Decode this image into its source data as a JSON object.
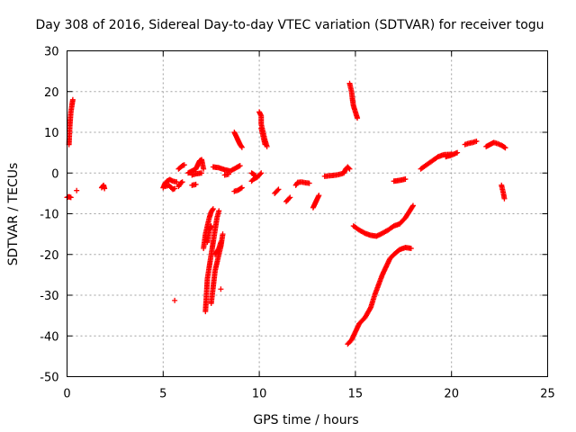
{
  "chart_data": {
    "type": "scatter",
    "title": "Day 308 of 2016, Sidereal Day-to-day VTEC variation (SDTVAR) for receiver togu",
    "xlabel": "GPS time / hours",
    "ylabel": "SDTVAR / TECUs",
    "xlim": [
      0,
      25
    ],
    "ylim": [
      -50,
      30
    ],
    "xticks": [
      "0",
      "5",
      "10",
      "15",
      "20",
      "25"
    ],
    "yticks": [
      "-50",
      "-40",
      "-30",
      "-20",
      "-10",
      "0",
      "10",
      "20",
      "30"
    ],
    "grid": true,
    "marker": "+",
    "color": "#ff0000",
    "tracks": [
      {
        "points": [
          [
            0.0,
            -6.0
          ],
          [
            0.1,
            -5.8
          ],
          [
            0.2,
            -6.0
          ]
        ]
      },
      {
        "points": [
          [
            0.1,
            7.0
          ],
          [
            0.15,
            12.0
          ],
          [
            0.2,
            15.0
          ],
          [
            0.3,
            18.0
          ]
        ]
      },
      {
        "points": [
          [
            0.5,
            -4.3
          ]
        ]
      },
      {
        "points": [
          [
            1.8,
            -3.6
          ],
          [
            1.9,
            -3.0
          ],
          [
            1.95,
            -3.8
          ]
        ]
      },
      {
        "points": [
          [
            5.0,
            -3.6
          ],
          [
            5.1,
            -2.5
          ],
          [
            5.2,
            -2.0
          ],
          [
            5.35,
            -1.6
          ],
          [
            5.5,
            -2.0
          ],
          [
            5.7,
            -2.2
          ]
        ]
      },
      {
        "points": [
          [
            5.1,
            -3.3
          ],
          [
            5.3,
            -3.0
          ],
          [
            5.5,
            -4.0
          ],
          [
            5.6,
            -3.8
          ]
        ]
      },
      {
        "points": [
          [
            5.8,
            -3.3
          ],
          [
            5.9,
            -2.5
          ],
          [
            6.0,
            -2.2
          ]
        ]
      },
      {
        "points": [
          [
            5.8,
            1.0
          ],
          [
            6.0,
            1.8
          ],
          [
            6.1,
            2.0
          ]
        ]
      },
      {
        "points": [
          [
            6.3,
            0.0
          ],
          [
            6.5,
            0.5
          ],
          [
            6.7,
            1.0
          ],
          [
            6.8,
            2.0
          ],
          [
            6.9,
            3.0
          ],
          [
            7.0,
            3.3
          ],
          [
            7.1,
            1.0
          ]
        ]
      },
      {
        "points": [
          [
            6.5,
            -0.5
          ],
          [
            6.7,
            -0.2
          ],
          [
            7.0,
            0.0
          ]
        ]
      },
      {
        "points": [
          [
            6.5,
            -3.0
          ],
          [
            6.7,
            -2.8
          ]
        ]
      },
      {
        "points": [
          [
            5.6,
            -31.3
          ]
        ]
      },
      {
        "points": [
          [
            7.1,
            -18.5
          ],
          [
            7.2,
            -15.0
          ],
          [
            7.3,
            -13.0
          ],
          [
            7.4,
            -11.0
          ],
          [
            7.5,
            -9.5
          ],
          [
            7.6,
            -8.8
          ]
        ]
      },
      {
        "points": [
          [
            7.2,
            -34.0
          ],
          [
            7.25,
            -30.0
          ],
          [
            7.3,
            -26.0
          ],
          [
            7.4,
            -23.0
          ],
          [
            7.5,
            -20.0
          ],
          [
            7.6,
            -17.0
          ],
          [
            7.7,
            -14.0
          ],
          [
            7.8,
            -11.0
          ],
          [
            7.9,
            -9.3
          ]
        ]
      },
      {
        "points": [
          [
            7.3,
            -17.0
          ],
          [
            7.4,
            -14.0
          ],
          [
            7.5,
            -13.0
          ]
        ]
      },
      {
        "points": [
          [
            7.5,
            -32.0
          ],
          [
            7.6,
            -28.0
          ],
          [
            7.7,
            -24.0
          ],
          [
            7.8,
            -22.0
          ],
          [
            7.9,
            -20.0
          ],
          [
            8.0,
            -18.0
          ],
          [
            8.1,
            -15.0
          ]
        ]
      },
      {
        "points": [
          [
            7.7,
            -20.0
          ],
          [
            7.9,
            -18.5
          ],
          [
            8.0,
            -17.0
          ]
        ]
      },
      {
        "points": [
          [
            8.0,
            -28.5
          ]
        ]
      },
      {
        "points": [
          [
            7.6,
            1.5
          ],
          [
            7.9,
            1.3
          ],
          [
            8.2,
            0.8
          ],
          [
            8.5,
            0.5
          ],
          [
            8.8,
            1.3
          ],
          [
            9.0,
            1.8
          ]
        ]
      },
      {
        "points": [
          [
            8.2,
            -0.5
          ],
          [
            8.4,
            -0.3
          ]
        ]
      },
      {
        "points": [
          [
            8.7,
            10.0
          ],
          [
            8.8,
            9.0
          ],
          [
            8.9,
            8.0
          ],
          [
            9.0,
            7.0
          ],
          [
            9.1,
            6.3
          ]
        ]
      },
      {
        "points": [
          [
            8.7,
            -4.5
          ],
          [
            8.9,
            -4.2
          ],
          [
            9.1,
            -3.6
          ]
        ]
      },
      {
        "points": [
          [
            9.6,
            -2.0
          ],
          [
            9.7,
            -1.5
          ],
          [
            9.9,
            -1.0
          ],
          [
            10.0,
            -0.5
          ],
          [
            10.1,
            0.0
          ]
        ]
      },
      {
        "points": [
          [
            9.6,
            0.0
          ],
          [
            9.8,
            -0.6
          ]
        ]
      },
      {
        "points": [
          [
            10.0,
            15.0
          ],
          [
            10.1,
            14.0
          ],
          [
            10.1,
            12.0
          ],
          [
            10.2,
            10.0
          ],
          [
            10.3,
            8.0
          ],
          [
            10.4,
            6.5
          ]
        ]
      },
      {
        "points": [
          [
            10.1,
            11.0
          ],
          [
            10.2,
            9.0
          ],
          [
            10.3,
            7.0
          ]
        ]
      },
      {
        "points": [
          [
            10.8,
            -5.0
          ],
          [
            10.9,
            -4.5
          ],
          [
            11.0,
            -4.0
          ]
        ]
      },
      {
        "points": [
          [
            11.4,
            -7.0
          ],
          [
            11.5,
            -6.5
          ],
          [
            11.6,
            -6.0
          ]
        ]
      },
      {
        "points": [
          [
            11.9,
            -3.0
          ],
          [
            12.0,
            -2.3
          ],
          [
            12.2,
            -2.2
          ],
          [
            12.4,
            -2.4
          ],
          [
            12.6,
            -2.5
          ]
        ]
      },
      {
        "points": [
          [
            12.8,
            -8.5
          ],
          [
            12.9,
            -7.5
          ],
          [
            13.0,
            -6.5
          ],
          [
            13.1,
            -5.5
          ]
        ]
      },
      {
        "points": [
          [
            13.4,
            -0.8
          ],
          [
            13.6,
            -0.7
          ],
          [
            13.8,
            -0.6
          ],
          [
            14.0,
            -0.5
          ],
          [
            14.2,
            -0.3
          ],
          [
            14.4,
            0.0
          ],
          [
            14.5,
            1.0
          ],
          [
            14.6,
            1.5
          ],
          [
            14.7,
            1.0
          ]
        ]
      },
      {
        "points": [
          [
            14.7,
            22.0
          ],
          [
            14.8,
            20.0
          ],
          [
            14.85,
            18.0
          ],
          [
            14.9,
            16.5
          ],
          [
            15.0,
            15.0
          ],
          [
            15.1,
            13.5
          ]
        ]
      },
      {
        "points": [
          [
            14.9,
            -13.0
          ],
          [
            15.2,
            -14.0
          ],
          [
            15.5,
            -14.8
          ],
          [
            15.8,
            -15.3
          ],
          [
            16.1,
            -15.5
          ],
          [
            16.4,
            -14.8
          ],
          [
            16.7,
            -14.0
          ],
          [
            17.0,
            -13.0
          ],
          [
            17.3,
            -12.5
          ],
          [
            17.6,
            -11.0
          ],
          [
            17.8,
            -9.5
          ],
          [
            18.0,
            -8.0
          ]
        ]
      },
      {
        "points": [
          [
            14.6,
            -42.0
          ],
          [
            14.8,
            -41.0
          ],
          [
            15.0,
            -39.0
          ],
          [
            15.2,
            -37.0
          ],
          [
            15.5,
            -35.5
          ],
          [
            15.8,
            -33.0
          ],
          [
            16.0,
            -30.0
          ],
          [
            16.2,
            -27.5
          ],
          [
            16.4,
            -25.0
          ],
          [
            16.6,
            -23.0
          ],
          [
            16.8,
            -21.0
          ],
          [
            17.0,
            -20.0
          ],
          [
            17.3,
            -18.8
          ],
          [
            17.6,
            -18.3
          ],
          [
            17.9,
            -18.5
          ]
        ]
      },
      {
        "points": [
          [
            17.0,
            -2.0
          ],
          [
            17.3,
            -1.8
          ],
          [
            17.6,
            -1.5
          ]
        ]
      },
      {
        "points": [
          [
            18.4,
            1.0
          ],
          [
            18.7,
            2.0
          ],
          [
            19.0,
            3.0
          ],
          [
            19.3,
            4.0
          ],
          [
            19.6,
            4.5
          ],
          [
            20.0,
            4.6
          ]
        ]
      },
      {
        "points": [
          [
            19.7,
            4.0
          ],
          [
            20.0,
            4.4
          ],
          [
            20.3,
            5.0
          ]
        ]
      },
      {
        "points": [
          [
            20.7,
            7.0
          ],
          [
            20.9,
            7.3
          ],
          [
            21.1,
            7.5
          ],
          [
            21.3,
            7.8
          ]
        ]
      },
      {
        "points": [
          [
            21.8,
            6.5
          ],
          [
            22.0,
            7.0
          ],
          [
            22.2,
            7.5
          ],
          [
            22.4,
            7.2
          ],
          [
            22.6,
            6.8
          ],
          [
            22.8,
            6.2
          ]
        ]
      },
      {
        "points": [
          [
            22.6,
            -3.0
          ],
          [
            22.65,
            -4.0
          ],
          [
            22.7,
            -5.0
          ],
          [
            22.75,
            -6.3
          ]
        ]
      }
    ]
  }
}
